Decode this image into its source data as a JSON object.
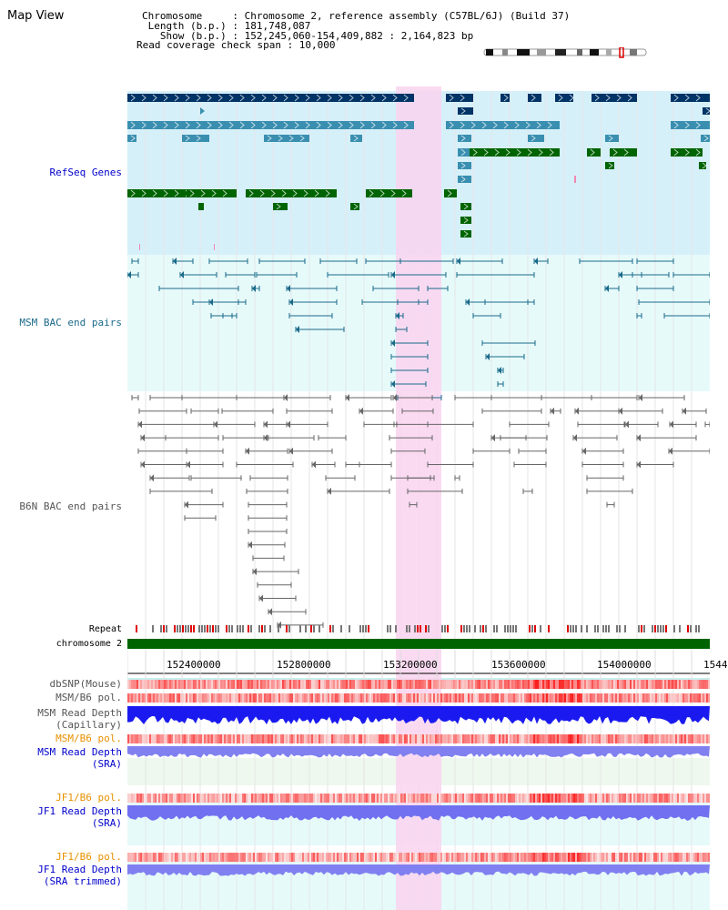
{
  "header": {
    "title": "Map View",
    "chromosome_line": "Chromosome     : Chromosome 2, reference assembly (C57BL/6J) (Build 37)",
    "length_line": " Length (b.p.) : 181,748,087",
    "show_line": "   Show (b.p.) : 152,245,060-154,409,882 : 2,164,823 bp",
    "coverage_line": "Read coverage check span : 10,000"
  },
  "tracks": {
    "refseq": "RefSeq Genes",
    "msm_bac": "MSM BAC end pairs",
    "b6n_bac": "B6N BAC end pairs",
    "repeat": "Repeat",
    "chromosome": "chromosome 2",
    "dbsnp": "dbSNP(Mouse)",
    "msm_b6_pol_1": "MSM/B6 pol.",
    "msm_depth_cap_1": "MSM Read Depth",
    "msm_depth_cap_2": "(Capillary)",
    "msm_b6_pol_2": "MSM/B6 pol.",
    "msm_depth_sra_1": "MSM Read Depth",
    "msm_depth_sra_2": "(SRA)",
    "jf1_b6_pol_1": "JF1/B6 pol.",
    "jf1_depth_sra_1": "JF1 Read Depth",
    "jf1_depth_sra_2": "(SRA)",
    "jf1_b6_pol_2": "JF1/B6 pol.",
    "jf1_depth_trim_1": "JF1 Read Depth",
    "jf1_depth_trim_2": "(SRA trimmed)"
  },
  "ruler": {
    "ticks": [
      "152400000",
      "152800000",
      "153200000",
      "153600000",
      "154000000",
      "1544"
    ]
  },
  "colors": {
    "gene_dark": "#003366",
    "gene_mid": "#3a8fb0",
    "gene_green": "#006400",
    "msm_bac": "#1a6a8a",
    "b6n_bac": "#666666",
    "highlight": "#f9d4ef",
    "refseq_bg": "#d6f0fa",
    "msm_bg": "#e6fafa",
    "label_blue": "#0000cc",
    "label_teal": "#1a6a8a",
    "label_orange": "#e89000"
  }
}
